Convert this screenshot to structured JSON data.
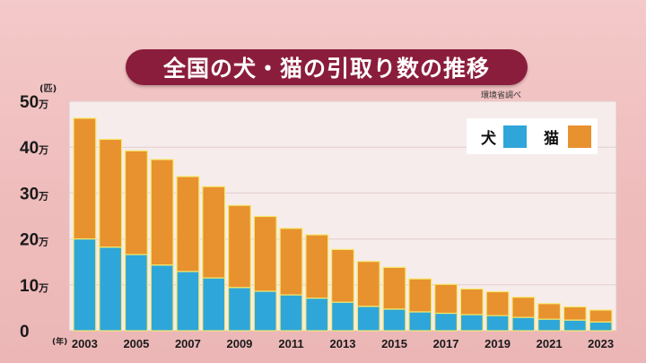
{
  "title": "全国の犬・猫の引取り数の推移",
  "source": "環境省調べ",
  "colors": {
    "dog": "#2fa6d9",
    "cat": "#e8912f",
    "banner": "#8b1d3c",
    "plot_bg": "#f7ecec",
    "bar_edge": "#f5e86a"
  },
  "chart_data": {
    "type": "bar",
    "stacked": true,
    "y_unit": "(匹)",
    "x_unit": "(年)",
    "y_tick_suffix": "万",
    "ylim": [
      0,
      50
    ],
    "yticks": [
      0,
      10,
      20,
      30,
      40,
      50
    ],
    "x": [
      2003,
      2004,
      2005,
      2006,
      2007,
      2008,
      2009,
      2010,
      2011,
      2012,
      2013,
      2014,
      2015,
      2016,
      2017,
      2018,
      2019,
      2020,
      2021,
      2022,
      2023
    ],
    "x_tick_labels": [
      "2003",
      "",
      "2005",
      "",
      "2007",
      "",
      "2009",
      "",
      "2011",
      "",
      "2013",
      "",
      "2015",
      "",
      "2017",
      "",
      "2019",
      "",
      "2021",
      "",
      "2023"
    ],
    "series": [
      {
        "name": "犬",
        "color": "#2fa6d9",
        "values": [
          20.0,
          18.2,
          16.6,
          14.3,
          12.9,
          11.5,
          9.4,
          8.6,
          7.8,
          7.1,
          6.2,
          5.3,
          4.7,
          4.1,
          3.8,
          3.5,
          3.3,
          2.9,
          2.5,
          2.3,
          1.9
        ]
      },
      {
        "name": "猫",
        "color": "#e8912f",
        "values": [
          26.3,
          23.5,
          22.6,
          23.0,
          20.7,
          19.9,
          17.9,
          16.3,
          14.5,
          13.8,
          11.5,
          9.8,
          9.1,
          7.2,
          6.3,
          5.6,
          5.2,
          4.4,
          3.4,
          2.9,
          2.6
        ]
      }
    ],
    "legend": {
      "position": "top-right"
    }
  }
}
